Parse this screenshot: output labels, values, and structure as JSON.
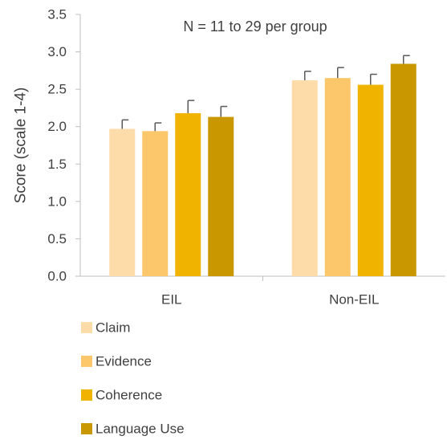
{
  "chart_data": {
    "type": "bar",
    "title": "",
    "annotation": "N = 11 to 29 per group",
    "xlabel": "",
    "ylabel": "Score (scale 1-4)",
    "ylim": [
      0,
      3.5
    ],
    "yticks": [
      "0.0",
      "0.5",
      "1.0",
      "1.5",
      "2.0",
      "2.5",
      "3.0",
      "3.5"
    ],
    "categories": [
      "EIL",
      "Non-EIL"
    ],
    "legend_position": "bottom-left",
    "grid": false,
    "error_bars": true,
    "series": [
      {
        "name": "Claim",
        "color": "#FDDCAA",
        "values": [
          1.97,
          2.62
        ],
        "errors": [
          0.12,
          0.12
        ]
      },
      {
        "name": "Evidence",
        "color": "#FCC76A",
        "values": [
          1.94,
          2.65
        ],
        "errors": [
          0.11,
          0.14
        ]
      },
      {
        "name": "Coherence",
        "color": "#F0B400",
        "values": [
          2.18,
          2.56
        ],
        "errors": [
          0.17,
          0.14
        ]
      },
      {
        "name": "Language Use",
        "color": "#C99800",
        "values": [
          2.13,
          2.84
        ],
        "errors": [
          0.14,
          0.11
        ]
      }
    ]
  }
}
